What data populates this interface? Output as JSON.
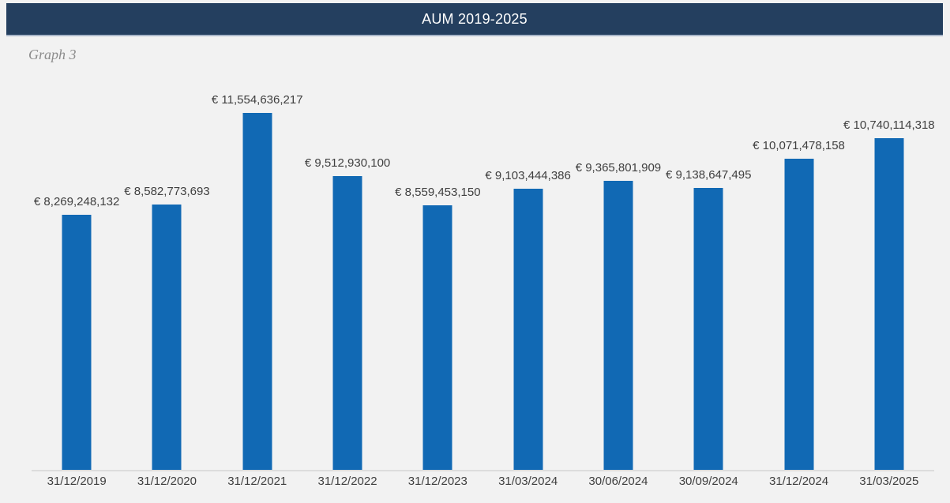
{
  "page": {
    "background_color": "#F2F2F2"
  },
  "header": {
    "title": "AUM 2019-2025",
    "background_color": "#243F5F",
    "text_color": "#FFFFFF"
  },
  "caption": "Graph 3",
  "chart_data": {
    "type": "bar",
    "title": "AUM 2019-2025",
    "categories": [
      "31/12/2019",
      "31/12/2020",
      "31/12/2021",
      "31/12/2022",
      "31/12/2023",
      "31/03/2024",
      "30/06/2024",
      "30/09/2024",
      "31/12/2024",
      "31/03/2025"
    ],
    "values": [
      8269248132,
      8582773693,
      11554636217,
      9512930100,
      8559453150,
      9103444386,
      9365801909,
      9138647495,
      10071478158,
      10740114318
    ],
    "data_labels": [
      "€ 8,269,248,132",
      "€ 8,582,773,693",
      "€ 11,554,636,217",
      "€ 9,512,930,100",
      "€ 8,559,453,150",
      "€ 9,103,444,386",
      "€ 9,365,801,909",
      "€ 9,138,647,495",
      "€ 10,071,478,158",
      "€ 10,740,114,318"
    ],
    "xlabel": "",
    "ylabel": "",
    "ylim": [
      0,
      11554636217
    ],
    "grid": false,
    "legend": false,
    "bar_color": "#1169B4",
    "label_color": "#3F3F3F",
    "axis_line_color": "#DCDCDC"
  }
}
